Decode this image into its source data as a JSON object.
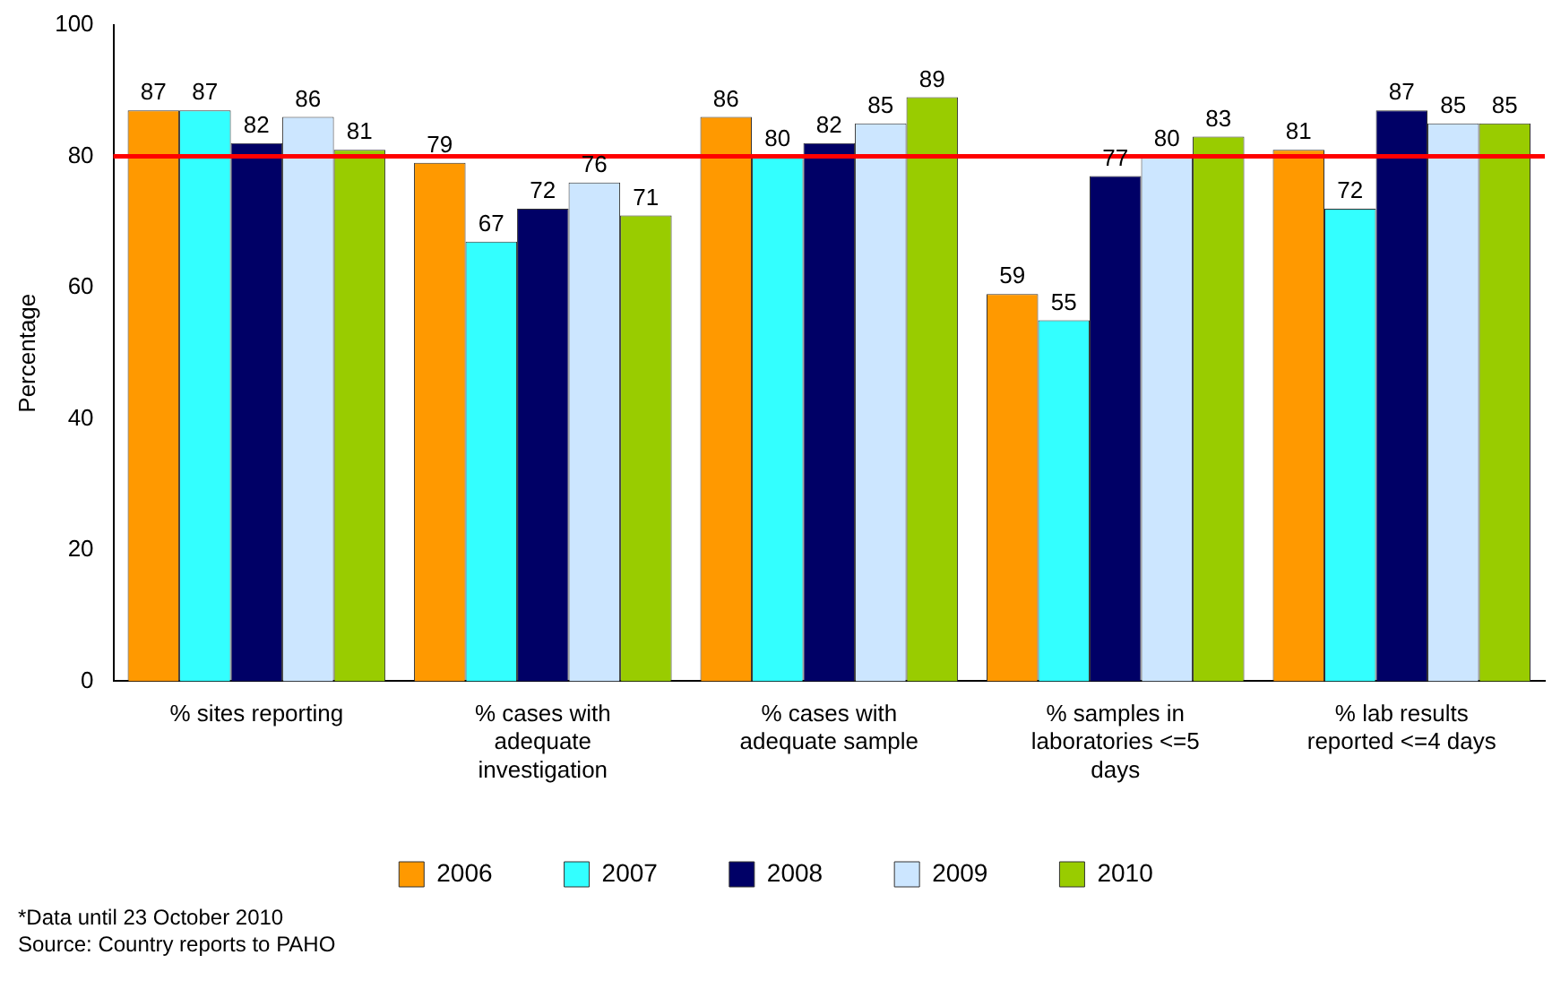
{
  "chart_data": {
    "type": "bar",
    "ylabel": "Percentage",
    "categories": [
      "% sites reporting",
      "% cases with adequate investigation",
      "% cases with adequate sample",
      "% samples in laboratories <=5 days",
      "% lab results reported <=4 days"
    ],
    "series": [
      {
        "name": "2006",
        "color": "#ff9900",
        "values": [
          87,
          79,
          86,
          59,
          81
        ]
      },
      {
        "name": "2007",
        "color": "#33ffff",
        "values": [
          87,
          67,
          80,
          55,
          72
        ]
      },
      {
        "name": "2008",
        "color": "#000066",
        "values": [
          82,
          72,
          82,
          77,
          87
        ]
      },
      {
        "name": "2009",
        "color": "#cce6ff",
        "values": [
          86,
          76,
          85,
          80,
          85
        ]
      },
      {
        "name": "2010",
        "color": "#99cc00",
        "values": [
          81,
          71,
          89,
          83,
          85
        ]
      }
    ],
    "ylim": [
      0,
      100
    ],
    "yticks": [
      0,
      20,
      40,
      60,
      80,
      100
    ],
    "grid": false,
    "legend": "bottom",
    "data_labels": true,
    "ref_lines": [
      {
        "axis": "y",
        "value": 80,
        "color": "#ff0000"
      }
    ],
    "annotations": [
      "*Data until 23 October 2010",
      "Source: Country reports to PAHO"
    ]
  }
}
